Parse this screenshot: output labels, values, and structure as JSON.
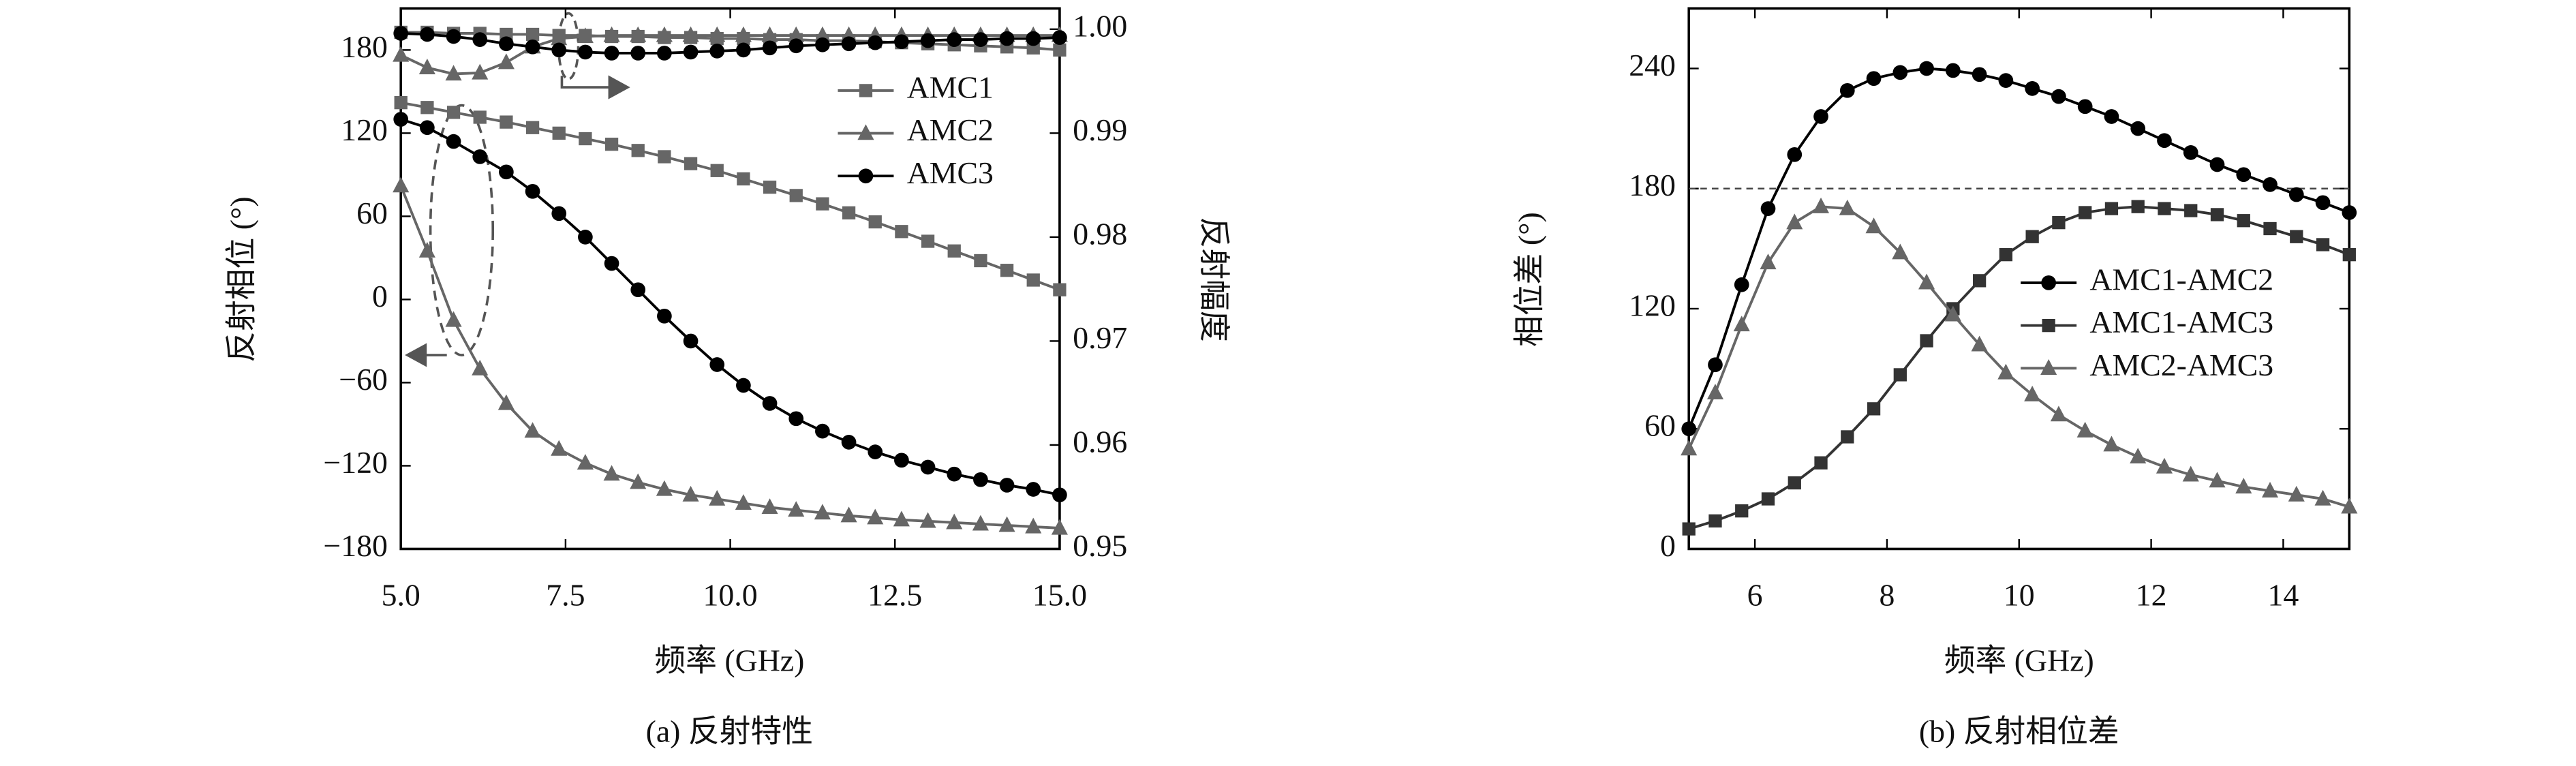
{
  "chart_data": [
    {
      "type": "line",
      "caption": "(a) 反射特性",
      "xlabel": "频率 (GHz)",
      "ylabel": "反射相位 (°)",
      "y2label": "反射幅度",
      "x": [
        5,
        5.4,
        5.8,
        6.2,
        6.6,
        7,
        7.4,
        7.8,
        8.2,
        8.6,
        9,
        9.4,
        9.8,
        10.2,
        10.6,
        11,
        11.4,
        11.8,
        12.2,
        12.6,
        13,
        13.4,
        13.8,
        14.2,
        14.6,
        15
      ],
      "xlim": [
        5,
        15
      ],
      "xticks": [
        {
          "value": 5,
          "label": "5.0"
        },
        {
          "value": 7.5,
          "label": "7.5"
        },
        {
          "value": 10,
          "label": "10.0"
        },
        {
          "value": 12.5,
          "label": "12.5"
        },
        {
          "value": 15,
          "label": "15.0"
        }
      ],
      "ylim": [
        -180,
        210
      ],
      "yticks": [
        {
          "value": -180,
          "label": "−180"
        },
        {
          "value": -120,
          "label": "−120"
        },
        {
          "value": -60,
          "label": "−60"
        },
        0,
        60,
        120,
        180
      ],
      "y2lim": [
        0.95,
        1.002
      ],
      "y2ticks": [
        0.95,
        0.96,
        0.97,
        0.98,
        0.99,
        {
          "value": 1,
          "label": "1.00"
        }
      ],
      "legend": "upper right",
      "series": [
        {
          "name": "AMC1",
          "color": "#666666",
          "marker": "square",
          "values": [
            142,
            138.5,
            135,
            131.5,
            128,
            124,
            120,
            116,
            112,
            107.5,
            103,
            98,
            93,
            87,
            81,
            75,
            69,
            62.5,
            56,
            49,
            42,
            35,
            28,
            21,
            14,
            7
          ]
        },
        {
          "name": "AMC2",
          "color": "#666666",
          "marker": "triangle",
          "values": [
            82,
            35,
            -15,
            -50,
            -75,
            -95,
            -108,
            -118,
            -126,
            -132,
            -137,
            -141,
            -144,
            -147,
            -150,
            -152,
            -154,
            -156,
            -157.5,
            -159,
            -160,
            -161,
            -162,
            -163,
            -164,
            -165
          ]
        },
        {
          "name": "AMC3",
          "color": "#000000",
          "marker": "circle",
          "values": [
            130,
            124,
            114,
            103,
            92,
            78,
            62,
            45,
            26,
            7,
            -12,
            -30,
            -47,
            -62,
            -75,
            -86,
            -95,
            -103,
            -110,
            -116,
            -121,
            -126,
            -130,
            -134,
            -137,
            -141
          ]
        },
        {
          "name": "AMC1",
          "color": "#666666",
          "marker": "square",
          "axis": "y2",
          "values": [
            0.9997,
            0.9997,
            0.9996,
            0.9996,
            0.9995,
            0.9995,
            0.9994,
            0.9994,
            0.9993,
            0.9993,
            0.9992,
            0.9992,
            0.9991,
            0.9991,
            0.999,
            0.999,
            0.9989,
            0.9989,
            0.9988,
            0.9987,
            0.9986,
            0.9985,
            0.9984,
            0.9983,
            0.9982,
            0.998
          ]
        },
        {
          "name": "AMC2",
          "color": "#666666",
          "marker": "triangle",
          "axis": "y2",
          "values": [
            0.9975,
            0.9963,
            0.9957,
            0.9958,
            0.9968,
            0.9983,
            0.9991,
            0.9993,
            0.9994,
            0.9994,
            0.9994,
            0.9994,
            0.9994,
            0.9994,
            0.9994,
            0.9994,
            0.9994,
            0.9994,
            0.9994,
            0.9994,
            0.9994,
            0.9994,
            0.9994,
            0.9994,
            0.9994,
            0.9994
          ]
        },
        {
          "name": "AMC3",
          "color": "#000000",
          "marker": "circle",
          "axis": "y2",
          "values": [
            0.9996,
            0.9995,
            0.9993,
            0.999,
            0.9986,
            0.9983,
            0.998,
            0.9978,
            0.9977,
            0.9977,
            0.9977,
            0.9978,
            0.9979,
            0.998,
            0.9982,
            0.9984,
            0.9985,
            0.9986,
            0.9987,
            0.9988,
            0.9989,
            0.999,
            0.999,
            0.9991,
            0.9991,
            0.9992
          ]
        }
      ]
    },
    {
      "type": "line",
      "caption": "(b) 反射相位差",
      "xlabel": "频率 (GHz)",
      "ylabel": "相位差 (°)",
      "x": [
        5,
        5.4,
        5.8,
        6.2,
        6.6,
        7,
        7.4,
        7.8,
        8.2,
        8.6,
        9,
        9.4,
        9.8,
        10.2,
        10.6,
        11,
        11.4,
        11.8,
        12.2,
        12.6,
        13,
        13.4,
        13.8,
        14.2,
        14.6,
        15
      ],
      "xlim": [
        5,
        15
      ],
      "xticks": [
        6,
        8,
        10,
        12,
        14
      ],
      "ylim": [
        0,
        270
      ],
      "yticks": [
        0,
        60,
        120,
        180,
        240
      ],
      "reference_line": 180,
      "legend": "center right",
      "series": [
        {
          "name": "AMC1-AMC2",
          "color": "#000000",
          "marker": "circle",
          "values": [
            60,
            92,
            132,
            170,
            197,
            216,
            229,
            235,
            238,
            240,
            239,
            237,
            234,
            230,
            226,
            221,
            216,
            210,
            204,
            198,
            192,
            187,
            182,
            177,
            173,
            168
          ]
        },
        {
          "name": "AMC1-AMC3",
          "color": "#333333",
          "marker": "square",
          "values": [
            10,
            14,
            19,
            25,
            33,
            43,
            56,
            70,
            87,
            104,
            120,
            134,
            147,
            156,
            163,
            168,
            170,
            171,
            170,
            169,
            167,
            164,
            160,
            156,
            152,
            147
          ]
        },
        {
          "name": "AMC2-AMC3",
          "color": "#666666",
          "marker": "triangle",
          "values": [
            50,
            78,
            112,
            143,
            163,
            171,
            170,
            161,
            148,
            133,
            117,
            102,
            88,
            77,
            67,
            59,
            52,
            46,
            41,
            37,
            34,
            31,
            29,
            27,
            25,
            21
          ]
        }
      ]
    }
  ]
}
